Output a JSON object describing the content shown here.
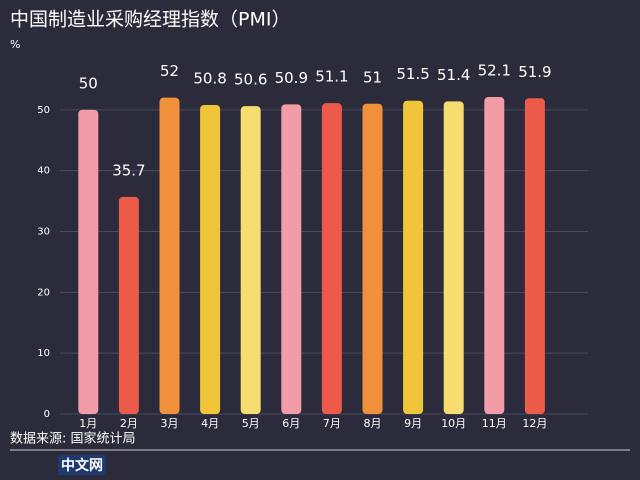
{
  "chart_data": {
    "type": "bar",
    "title": "中国制造业采购经理指数（PMI）",
    "y_label": "%",
    "categories": [
      "1月",
      "2月",
      "3月",
      "4月",
      "5月",
      "6月",
      "7月",
      "8月",
      "9月",
      "10月",
      "11月",
      "12月"
    ],
    "values": [
      50,
      35.7,
      52,
      50.8,
      50.6,
      50.9,
      51.1,
      51,
      51.5,
      51.4,
      52.1,
      51.9
    ],
    "colors": [
      "#f29ca8",
      "#ec5a4a",
      "#f0903a",
      "#f0c53a",
      "#f7dc6f",
      "#f29ca8",
      "#ec5a4a",
      "#f0903a",
      "#f0c53a",
      "#f7dc6f",
      "#f29ca8",
      "#ec5a4a"
    ],
    "ylim": [
      0,
      60
    ],
    "yticks": [
      0,
      10,
      20,
      30,
      40,
      50
    ],
    "grid": true,
    "source": "数据来源: 国家统计局",
    "logo": "中文网"
  }
}
